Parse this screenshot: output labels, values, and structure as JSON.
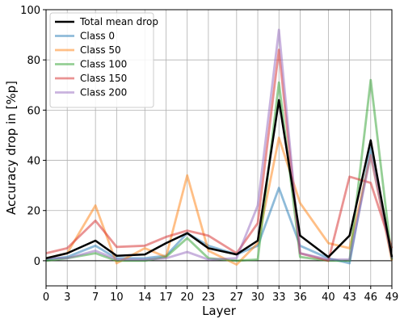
{
  "chart_data": {
    "type": "line",
    "xlabel": "Layer",
    "ylabel": "Accuracy drop in [%p]",
    "x": [
      0,
      3,
      7,
      10,
      14,
      17,
      20,
      23,
      27,
      30,
      33,
      36,
      40,
      43,
      46,
      49
    ],
    "xticks": [
      0,
      3,
      7,
      10,
      14,
      17,
      20,
      23,
      27,
      30,
      33,
      36,
      40,
      43,
      46,
      49
    ],
    "xlim": [
      0,
      49
    ],
    "ylim": [
      -10,
      100
    ],
    "yticks": [
      0,
      20,
      40,
      60,
      80,
      100
    ],
    "grid": true,
    "zero_line": true,
    "legend": "top-left",
    "series": [
      {
        "name": "Class 0",
        "color": "#1f77b4",
        "values": [
          0.5,
          1.5,
          6,
          1,
          1,
          2,
          11,
          6,
          2.5,
          6,
          29,
          6,
          1,
          -1,
          45,
          1
        ]
      },
      {
        "name": "Class 50",
        "color": "#ff7f0e",
        "values": [
          1,
          3,
          22,
          -1,
          5,
          1.5,
          34,
          4,
          -1.5,
          7,
          49,
          23,
          7,
          5,
          42,
          0
        ]
      },
      {
        "name": "Class 100",
        "color": "#2ca02c",
        "values": [
          0,
          1,
          3,
          0,
          0,
          1.5,
          9,
          1,
          0,
          0.5,
          71,
          1.5,
          0,
          0,
          72,
          0.5
        ]
      },
      {
        "name": "Class 150",
        "color": "#d62728",
        "values": [
          3,
          5,
          16,
          5.5,
          6,
          9.5,
          12,
          10,
          3,
          15,
          84,
          3,
          0,
          33.5,
          31,
          5
        ]
      },
      {
        "name": "Class 200",
        "color": "#9467bd",
        "values": [
          1,
          1,
          4,
          0.5,
          0.5,
          1,
          3.5,
          0.5,
          1,
          22,
          92,
          3,
          0.5,
          0.5,
          42,
          1
        ]
      },
      {
        "name": "Total mean drop",
        "color": "#000000",
        "values": [
          1,
          3,
          8,
          2,
          2.5,
          7,
          11,
          5,
          2.5,
          8,
          64,
          10,
          1.5,
          10,
          48,
          1.5
        ]
      }
    ]
  }
}
